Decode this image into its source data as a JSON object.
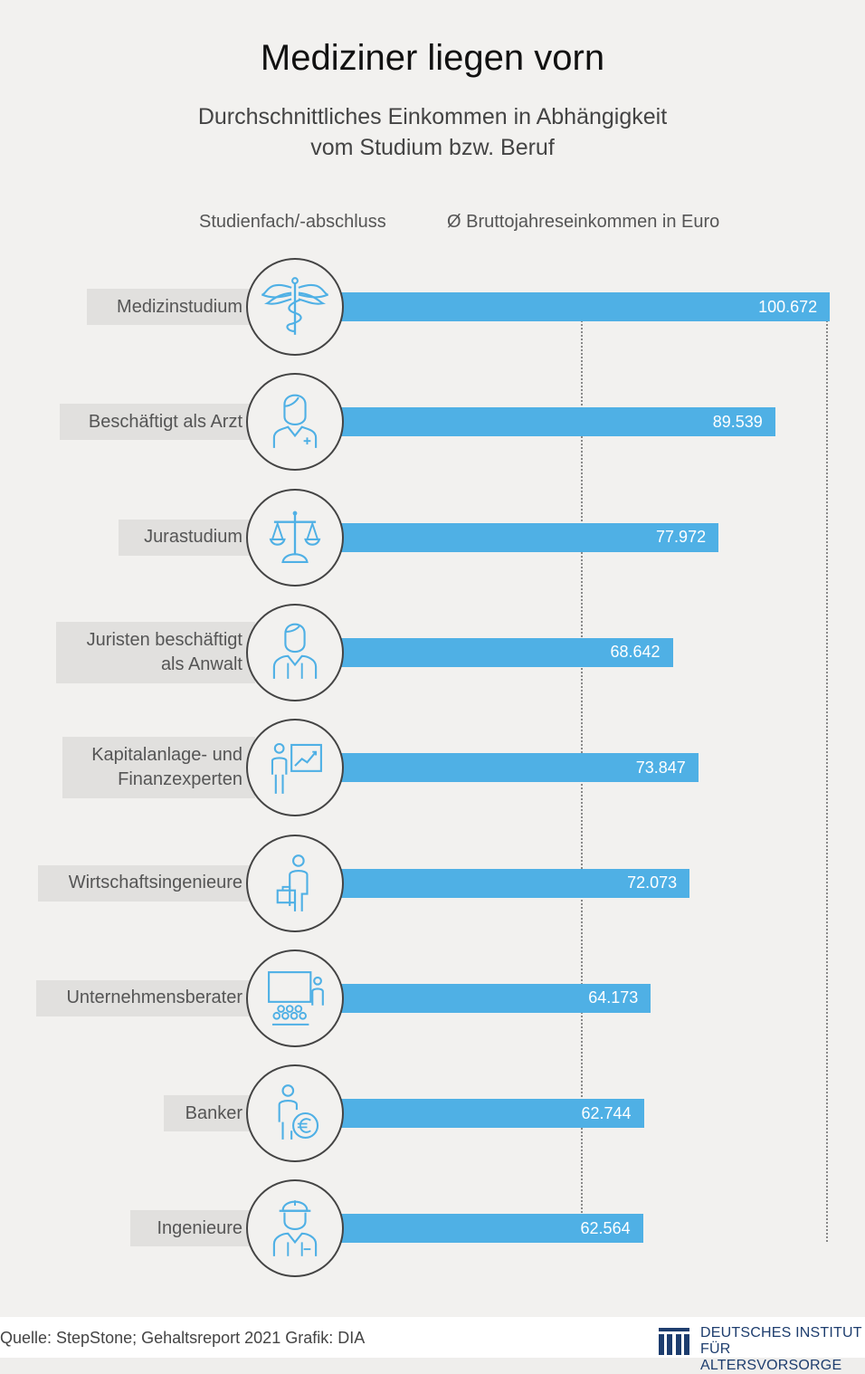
{
  "title": "Mediziner liegen vorn",
  "subtitle_line1": "Durchschnittliches Einkommen in Abhängigkeit",
  "subtitle_line2": "vom Studium bzw. Beruf",
  "column_headers": {
    "category": "Studienfach/-abschluss",
    "value": "Ø Bruttojahreseinkommen in Euro"
  },
  "chart_data": {
    "type": "bar",
    "orientation": "horizontal",
    "categories": [
      "Medizinstudium",
      "Beschäftigt als Arzt",
      "Jurastudium",
      "Juristen beschäftigt als Anwalt",
      "Kapitalanlage- und Finanzexperten",
      "Wirtschaftsingenieure",
      "Unternehmensberater",
      "Banker",
      "Ingenieure"
    ],
    "label_lines": [
      [
        "Medizinstudium"
      ],
      [
        "Beschäftigt als Arzt"
      ],
      [
        "Jurastudium"
      ],
      [
        "Juristen beschäftigt",
        "als Anwalt"
      ],
      [
        "Kapitalanlage- und",
        "Finanzexperten"
      ],
      [
        "Wirtschaftsingenieure"
      ],
      [
        "Unternehmensberater"
      ],
      [
        "Banker"
      ],
      [
        "Ingenieure"
      ]
    ],
    "values": [
      100672,
      89539,
      77972,
      68642,
      73847,
      72073,
      64173,
      62744,
      62564
    ],
    "value_labels": [
      "100.672",
      "89.539",
      "77.972",
      "68.642",
      "73.847",
      "72.073",
      "64.173",
      "62.744",
      "62.564"
    ],
    "icons": [
      "caduceus-icon",
      "doctor-icon",
      "scales-icon",
      "lawyer-icon",
      "presentation-chart-icon",
      "engineer-briefcase-icon",
      "consultant-audience-icon",
      "banker-euro-icon",
      "construction-worker-icon"
    ],
    "reference_lines": [
      50000,
      100000
    ],
    "bar_color": "#4fb0e5",
    "xlabel": "",
    "ylabel": ""
  },
  "source": "Quelle: StepStone; Gehaltsreport 2021  Grafik: DIA",
  "logo": {
    "line1": "DEUTSCHES INSTITUT",
    "line2": "FÜR ALTERSVORSORGE",
    "color": "#1d3d6e"
  }
}
